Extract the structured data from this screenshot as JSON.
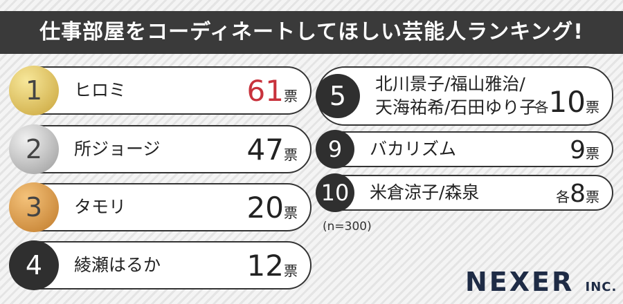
{
  "title": "仕事部屋をコーディネートしてほしい芸能人ランキング!",
  "rankings": [
    {
      "rank": 1,
      "name_lines": [
        "ヒロミ"
      ],
      "votes": 61,
      "unit": "票"
    },
    {
      "rank": 2,
      "name_lines": [
        "所ジョージ"
      ],
      "votes": 47,
      "unit": "票"
    },
    {
      "rank": 3,
      "name_lines": [
        "タモリ"
      ],
      "votes": 20,
      "unit": "票"
    },
    {
      "rank": 4,
      "name_lines": [
        "綾瀬はるか"
      ],
      "votes": 12,
      "unit": "票"
    },
    {
      "rank": 5,
      "name_lines": [
        "北川景子/福山雅治/",
        "天海祐希/石田ゆり子"
      ],
      "prefix": "各",
      "votes": 10,
      "unit": "票"
    },
    {
      "rank": 9,
      "name_lines": [
        "バカリズム"
      ],
      "votes": 9,
      "unit": "票"
    },
    {
      "rank": 10,
      "name_lines": [
        "米倉涼子/森泉"
      ],
      "prefix": "各",
      "votes": 8,
      "unit": "票"
    }
  ],
  "note": "(n=300)",
  "logo": {
    "name": "NEXER",
    "suffix": "INC."
  }
}
